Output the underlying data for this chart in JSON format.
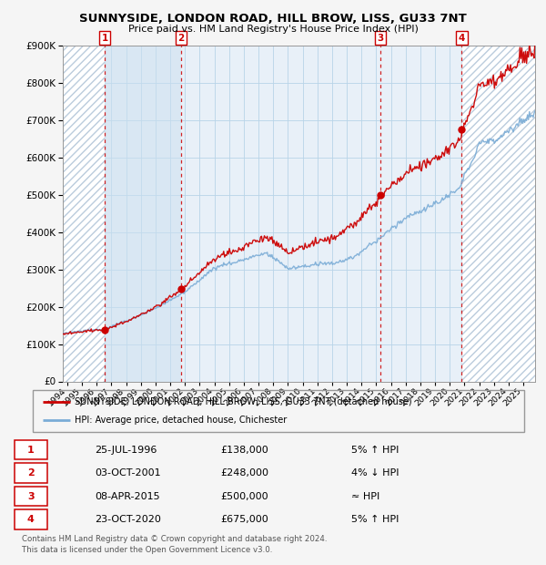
{
  "title": "SUNNYSIDE, LONDON ROAD, HILL BROW, LISS, GU33 7NT",
  "subtitle": "Price paid vs. HM Land Registry's House Price Index (HPI)",
  "sales": [
    {
      "num": 1,
      "date_str": "25-JUL-1996",
      "year": 1996.56,
      "price": 138000,
      "note": "5% ↑ HPI"
    },
    {
      "num": 2,
      "date_str": "03-OCT-2001",
      "year": 2001.75,
      "price": 248000,
      "note": "4% ↓ HPI"
    },
    {
      "num": 3,
      "date_str": "08-APR-2015",
      "year": 2015.27,
      "price": 500000,
      "note": "≈ HPI"
    },
    {
      "num": 4,
      "date_str": "23-OCT-2020",
      "year": 2020.81,
      "price": 675000,
      "note": "5% ↑ HPI"
    }
  ],
  "hpi_line_color": "#7aacd6",
  "property_line_color": "#cc0000",
  "sale_dot_color": "#cc0000",
  "sale_marker_color": "#cc0000",
  "dashed_line_color": "#cc0000",
  "grid_color": "#b8d4e8",
  "plot_bg_color": "#e8f0f8",
  "fig_bg_color": "#f5f5f5",
  "shade_color": "#cce0f0",
  "hatch_color": "#d0d8e0",
  "ylim": [
    0,
    900000
  ],
  "xlim_start": 1993.7,
  "xlim_end": 2025.8,
  "ylabel_ticks": [
    0,
    100000,
    200000,
    300000,
    400000,
    500000,
    600000,
    700000,
    800000,
    900000
  ],
  "xtick_years": [
    1994,
    1995,
    1996,
    1997,
    1998,
    1999,
    2000,
    2001,
    2002,
    2003,
    2004,
    2005,
    2006,
    2007,
    2008,
    2009,
    2010,
    2011,
    2012,
    2013,
    2014,
    2015,
    2016,
    2017,
    2018,
    2019,
    2020,
    2021,
    2022,
    2023,
    2024,
    2025
  ],
  "legend_property": "SUNNYSIDE, LONDON ROAD, HILL BROW, LISS, GU33 7NT (detached house)",
  "legend_hpi": "HPI: Average price, detached house, Chichester",
  "footer1": "Contains HM Land Registry data © Crown copyright and database right 2024.",
  "footer2": "This data is licensed under the Open Government Licence v3.0."
}
